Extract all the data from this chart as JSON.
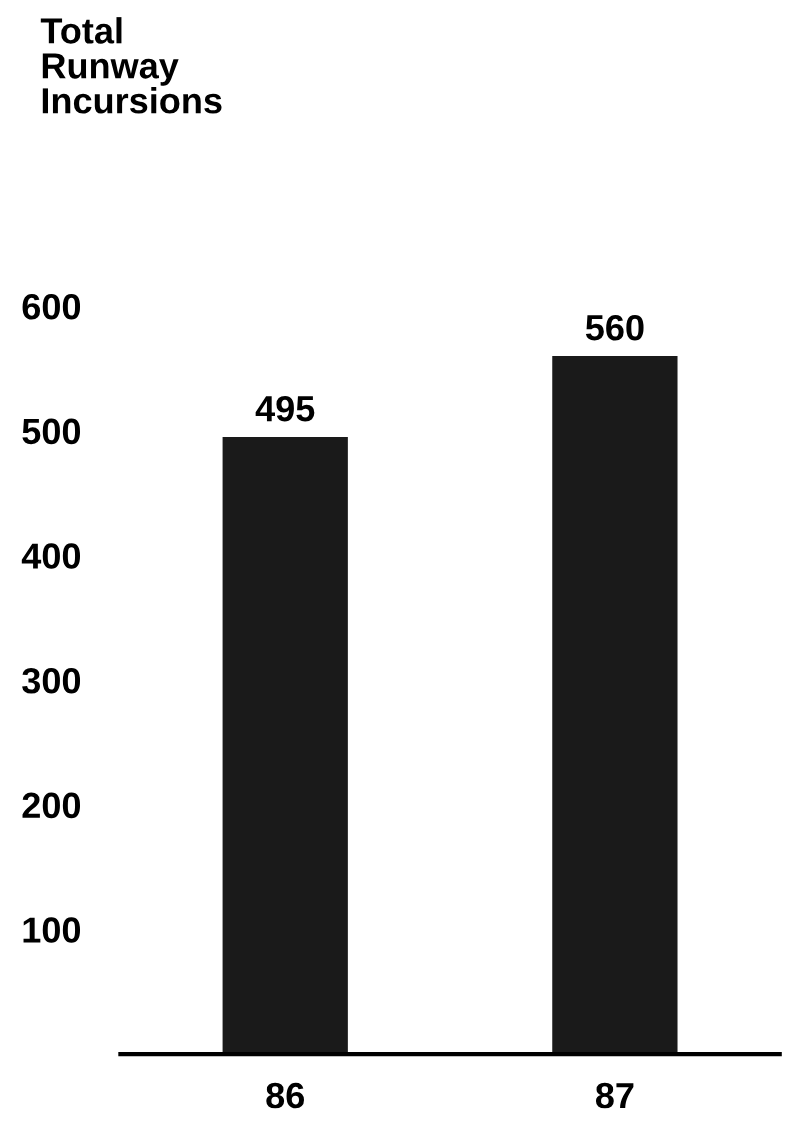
{
  "chart_data": {
    "type": "bar",
    "title": "Total\nRunway\nIncursions",
    "categories": [
      "86",
      "87"
    ],
    "values": [
      495,
      560
    ],
    "color": "#1a1a1a",
    "ylim": [
      0,
      600
    ],
    "yticks": [
      100,
      200,
      300,
      400,
      500,
      600
    ],
    "data_labels": true,
    "grid": false,
    "legend": false
  }
}
